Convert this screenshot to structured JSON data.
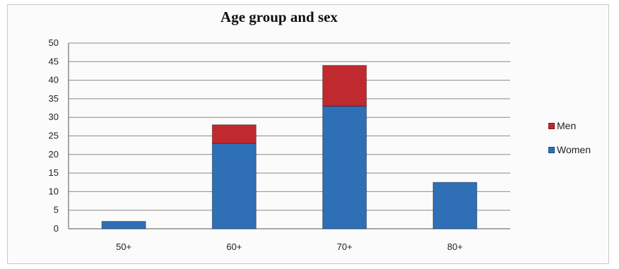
{
  "chart_data": {
    "type": "bar",
    "stacked": true,
    "title": "Age group and sex",
    "categories": [
      "50+",
      "60+",
      "70+",
      "80+"
    ],
    "series": [
      {
        "name": "Women",
        "values": [
          2,
          23,
          33,
          12.5
        ],
        "color": "#2e6fb5"
      },
      {
        "name": "Men",
        "values": [
          0,
          5,
          11,
          0
        ],
        "color": "#c0292e"
      }
    ],
    "ylim": [
      0,
      50
    ],
    "yticks": [
      0,
      5,
      10,
      15,
      20,
      25,
      30,
      35,
      40,
      45,
      50
    ],
    "grid": true,
    "legend_position": "right",
    "legend_order": [
      "Men",
      "Women"
    ]
  }
}
